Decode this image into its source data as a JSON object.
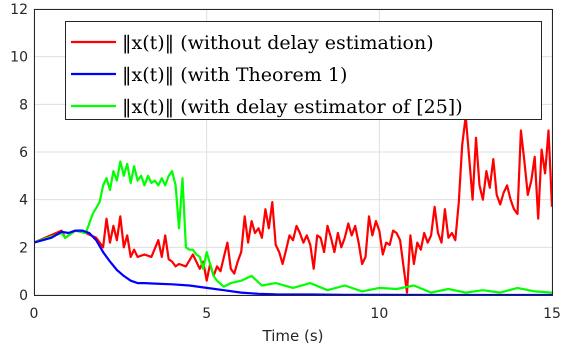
{
  "chart_data": {
    "type": "line",
    "title": "",
    "xlabel": "Time (s)",
    "ylabel": "",
    "xlim": [
      0,
      15
    ],
    "ylim": [
      0,
      12
    ],
    "x_ticks": [
      "0",
      "5",
      "10",
      "15"
    ],
    "y_ticks": [
      "0",
      "2",
      "4",
      "6",
      "8",
      "10",
      "12"
    ],
    "grid": true,
    "legend_position": "top-right",
    "series": [
      {
        "name": "‖x(t)‖ (without delay estimation)",
        "color": "#ff0000",
        "x": [
          0,
          0.8,
          0.9,
          1.2,
          1.5,
          1.8,
          2.0,
          2.1,
          2.2,
          2.3,
          2.4,
          2.5,
          2.6,
          2.7,
          2.8,
          2.9,
          3.0,
          3.2,
          3.4,
          3.6,
          3.7,
          3.8,
          3.9,
          4.0,
          4.1,
          4.2,
          4.4,
          4.6,
          4.8,
          4.9,
          5.0,
          5.1,
          5.2,
          5.3,
          5.4,
          5.5,
          5.6,
          5.7,
          5.8,
          5.9,
          6.0,
          6.1,
          6.2,
          6.3,
          6.4,
          6.5,
          6.6,
          6.7,
          6.8,
          6.9,
          7.0,
          7.1,
          7.2,
          7.3,
          7.4,
          7.5,
          7.6,
          7.7,
          7.8,
          7.9,
          8.0,
          8.1,
          8.2,
          8.3,
          8.4,
          8.5,
          8.6,
          8.7,
          8.8,
          8.9,
          9.0,
          9.1,
          9.2,
          9.3,
          9.4,
          9.5,
          9.6,
          9.7,
          9.8,
          9.9,
          10.0,
          10.1,
          10.2,
          10.3,
          10.4,
          10.5,
          10.6,
          10.7,
          10.8,
          10.9,
          11.0,
          11.1,
          11.2,
          11.3,
          11.4,
          11.5,
          11.6,
          11.7,
          11.8,
          11.9,
          12.0,
          12.1,
          12.2,
          12.3,
          12.4,
          12.5,
          12.6,
          12.7,
          12.8,
          12.9,
          13.0,
          13.1,
          13.2,
          13.3,
          13.4,
          13.5,
          13.6,
          13.7,
          13.8,
          13.9,
          14.0,
          14.1,
          14.2,
          14.3,
          14.4,
          14.5,
          14.6,
          14.7,
          14.8,
          14.9,
          15.0
        ],
        "y": [
          2.2,
          2.7,
          2.4,
          2.7,
          2.6,
          2.4,
          2.0,
          3.2,
          2.2,
          2.9,
          2.3,
          3.3,
          2.0,
          2.5,
          1.6,
          1.9,
          1.6,
          1.7,
          1.6,
          2.3,
          1.6,
          2.5,
          1.5,
          1.4,
          1.2,
          1.3,
          1.2,
          1.7,
          1.1,
          1.4,
          0.6,
          1.3,
          0.8,
          1.2,
          1.0,
          1.6,
          2.2,
          1.1,
          0.9,
          1.4,
          1.8,
          3.3,
          2.2,
          3.1,
          2.6,
          2.8,
          2.4,
          3.6,
          2.8,
          3.9,
          2.1,
          1.8,
          1.3,
          1.9,
          2.5,
          2.3,
          2.9,
          2.6,
          2.2,
          2.5,
          2.1,
          1.1,
          2.5,
          2.4,
          1.8,
          2.9,
          2.4,
          1.8,
          2.6,
          2.0,
          2.4,
          3.0,
          2.5,
          2.9,
          2.2,
          1.3,
          1.6,
          3.3,
          2.5,
          3.1,
          2.7,
          1.7,
          2.2,
          2.1,
          2.7,
          2.6,
          2.3,
          1.2,
          0.1,
          2.5,
          1.3,
          2.2,
          1.9,
          2.6,
          2.2,
          2.5,
          3.7,
          2.6,
          2.2,
          3.6,
          2.4,
          2.6,
          2.3,
          3.9,
          6.3,
          7.5,
          5.8,
          4.0,
          6.6,
          4.6,
          4.0,
          5.2,
          4.5,
          5.7,
          4.2,
          3.8,
          4.3,
          4.6,
          4.0,
          3.6,
          3.4,
          6.9,
          5.6,
          4.2,
          4.8,
          5.8,
          3.2,
          6.1,
          5.1,
          6.9,
          3.7
        ]
      },
      {
        "name": "‖x(t)‖ (with Theorem 1)",
        "color": "#0000ff",
        "x": [
          0,
          0.5,
          0.8,
          1.0,
          1.2,
          1.4,
          1.6,
          1.8,
          2.0,
          2.2,
          2.4,
          2.6,
          2.8,
          3.0,
          3.2,
          3.5,
          4.0,
          4.5,
          5.0,
          5.5,
          6.0,
          6.5,
          7.0,
          8.0,
          9.0,
          10.0,
          12.0,
          15.0
        ],
        "y": [
          2.2,
          2.4,
          2.65,
          2.6,
          2.7,
          2.7,
          2.6,
          2.3,
          1.8,
          1.4,
          1.05,
          0.8,
          0.6,
          0.5,
          0.5,
          0.48,
          0.45,
          0.4,
          0.3,
          0.2,
          0.1,
          0.05,
          0.03,
          0.02,
          0.01,
          0.01,
          0.0,
          0.0
        ]
      },
      {
        "name": "‖x(t)‖ (with delay estimator of [25])",
        "color": "#00ff00",
        "x": [
          0,
          0.8,
          0.9,
          1.2,
          1.5,
          1.7,
          1.9,
          2.0,
          2.1,
          2.2,
          2.3,
          2.4,
          2.5,
          2.6,
          2.7,
          2.8,
          2.9,
          3.0,
          3.1,
          3.2,
          3.3,
          3.4,
          3.5,
          3.6,
          3.7,
          3.8,
          3.9,
          4.0,
          4.1,
          4.2,
          4.3,
          4.4,
          4.5,
          4.6,
          4.7,
          4.8,
          4.9,
          5.0,
          5.1,
          5.2,
          5.3,
          5.5,
          5.7,
          6.0,
          6.3,
          6.6,
          7.0,
          7.5,
          8.0,
          8.5,
          9.0,
          9.5,
          10.0,
          10.5,
          11.0,
          11.5,
          12.0,
          12.5,
          13.0,
          13.5,
          14.0,
          14.5,
          15.0
        ],
        "y": [
          2.2,
          2.6,
          2.4,
          2.7,
          2.6,
          3.4,
          3.9,
          4.6,
          4.9,
          4.4,
          5.2,
          4.8,
          5.6,
          5.0,
          5.5,
          4.7,
          5.4,
          4.8,
          5.0,
          4.6,
          5.0,
          4.7,
          4.8,
          4.6,
          4.9,
          4.6,
          5.0,
          5.2,
          4.6,
          2.8,
          4.9,
          2.0,
          1.9,
          1.9,
          1.7,
          1.6,
          1.1,
          1.8,
          1.3,
          0.8,
          0.6,
          0.35,
          0.5,
          0.6,
          0.8,
          0.4,
          0.5,
          0.3,
          0.5,
          0.2,
          0.4,
          0.15,
          0.3,
          0.25,
          0.4,
          0.1,
          0.25,
          0.1,
          0.2,
          0.1,
          0.3,
          0.15,
          0.1
        ]
      }
    ]
  }
}
